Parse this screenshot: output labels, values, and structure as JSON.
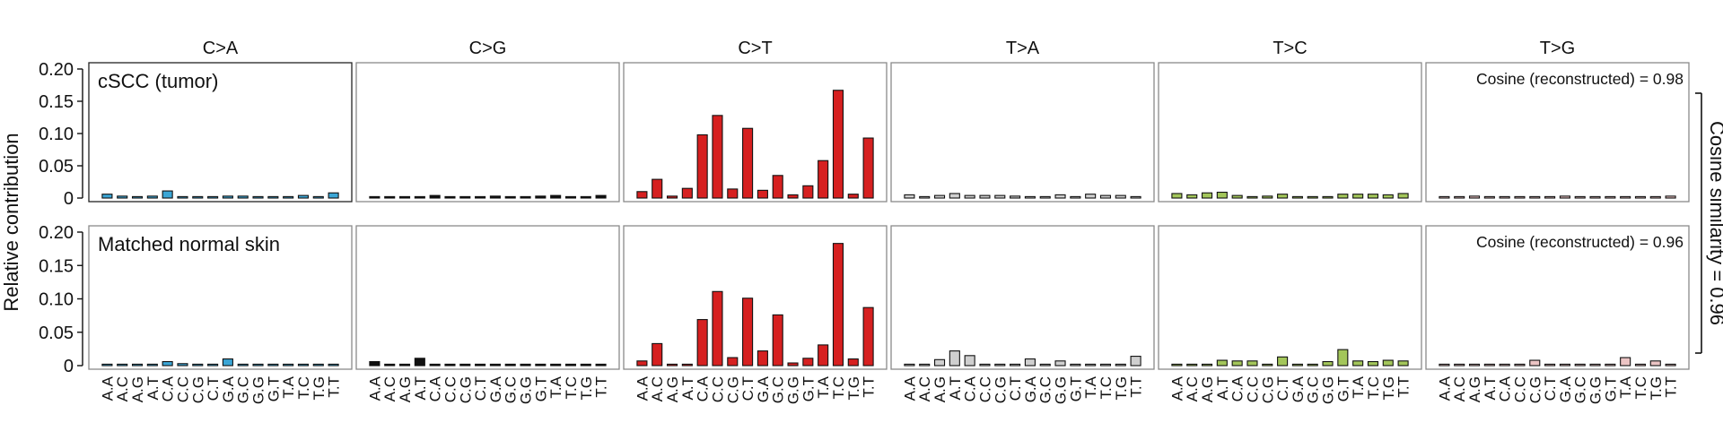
{
  "chart_data": {
    "type": "bar",
    "ylabel": "Relative contribution",
    "right_label": "Cosine similarity = 0.96",
    "y_ticks": [
      "0",
      "0.05",
      "0.10",
      "0.15",
      "0.20"
    ],
    "ylim": [
      0,
      0.2
    ],
    "groups": [
      "C>A",
      "C>G",
      "C>T",
      "T>A",
      "T>C",
      "T>G"
    ],
    "group_colors": [
      "#3ba6d6",
      "#111111",
      "#d62020",
      "#cfcfcf",
      "#a3c65a",
      "#ebc4c4"
    ],
    "contexts": [
      "A.A",
      "A.C",
      "A.G",
      "A.T",
      "C.A",
      "C.C",
      "C.G",
      "C.T",
      "G.A",
      "G.C",
      "G.G",
      "G.T",
      "T.A",
      "T.C",
      "T.G",
      "T.T"
    ],
    "rows": [
      {
        "label": "cSCC (tumor)",
        "cosine_label": "Cosine (reconstructed) = 0.98",
        "values": {
          "C>A": [
            0.006,
            0.003,
            0.002,
            0.003,
            0.011,
            0.001,
            0.001,
            0.002,
            0.003,
            0.003,
            0.001,
            0.002,
            0.002,
            0.004,
            0.001,
            0.008
          ],
          "C>G": [
            0.001,
            0.001,
            0.001,
            0.002,
            0.004,
            0.001,
            0.001,
            0.002,
            0.003,
            0.001,
            0.002,
            0.003,
            0.004,
            0.001,
            0.001,
            0.004
          ],
          "C>T": [
            0.01,
            0.029,
            0.003,
            0.015,
            0.098,
            0.128,
            0.014,
            0.108,
            0.012,
            0.035,
            0.005,
            0.019,
            0.058,
            0.167,
            0.006,
            0.093
          ],
          "T>A": [
            0.005,
            0.002,
            0.004,
            0.007,
            0.004,
            0.004,
            0.004,
            0.003,
            0.001,
            0.002,
            0.005,
            0.001,
            0.006,
            0.004,
            0.004,
            0.002
          ],
          "T>C": [
            0.007,
            0.005,
            0.008,
            0.009,
            0.004,
            0.002,
            0.003,
            0.006,
            0.002,
            0.002,
            0.001,
            0.006,
            0.006,
            0.006,
            0.005,
            0.007
          ],
          "T>G": [
            0.001,
            0.001,
            0.003,
            0.002,
            0.002,
            0.001,
            0.001,
            0.002,
            0.003,
            0.002,
            0.002,
            0.002,
            0.001,
            0.002,
            0.002,
            0.003
          ]
        }
      },
      {
        "label": "Matched normal skin",
        "cosine_label": "Cosine (reconstructed) = 0.96",
        "values": {
          "C>A": [
            0.001,
            0.001,
            0.001,
            0.001,
            0.006,
            0.003,
            0.001,
            0.001,
            0.01,
            0.001,
            0.001,
            0.001,
            0.001,
            0.002,
            0.001,
            0.001
          ],
          "C>G": [
            0.006,
            0.001,
            0.001,
            0.011,
            0.001,
            0.001,
            0.001,
            0.001,
            0.001,
            0.001,
            0.001,
            0.001,
            0.001,
            0.001,
            0.001,
            0.001
          ],
          "C>T": [
            0.007,
            0.033,
            0.001,
            0.001,
            0.069,
            0.111,
            0.012,
            0.101,
            0.022,
            0.076,
            0.004,
            0.011,
            0.031,
            0.183,
            0.01,
            0.087
          ],
          "T>A": [
            0.001,
            0.001,
            0.009,
            0.022,
            0.015,
            0.001,
            0.001,
            0.001,
            0.01,
            0.001,
            0.007,
            0.001,
            0.001,
            0.001,
            0.001,
            0.014
          ],
          "T>C": [
            0.001,
            0.001,
            0.001,
            0.008,
            0.007,
            0.007,
            0.001,
            0.013,
            0.001,
            0.001,
            0.006,
            0.024,
            0.007,
            0.006,
            0.008,
            0.007
          ],
          "T>G": [
            0.001,
            0.001,
            0.001,
            0.001,
            0.001,
            0.001,
            0.008,
            0.001,
            0.001,
            0.001,
            0.001,
            0.001,
            0.012,
            0.001,
            0.007,
            0.001
          ]
        }
      }
    ]
  }
}
